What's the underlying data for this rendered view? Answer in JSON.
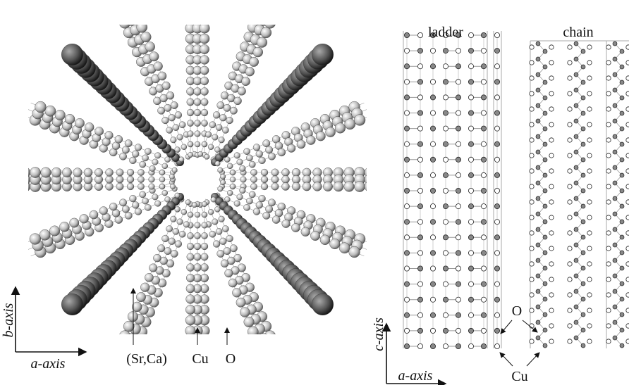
{
  "left_panel": {
    "b_axis": "b-axis",
    "a_axis": "a-axis",
    "sr_ca": "(Sr,Ca)",
    "cu": "Cu",
    "o": "O"
  },
  "right_panel": {
    "ladder": "ladder",
    "chain": "chain",
    "c_axis": "c-axis",
    "a_axis": "a-axis",
    "o": "O",
    "cu": "Cu"
  }
}
